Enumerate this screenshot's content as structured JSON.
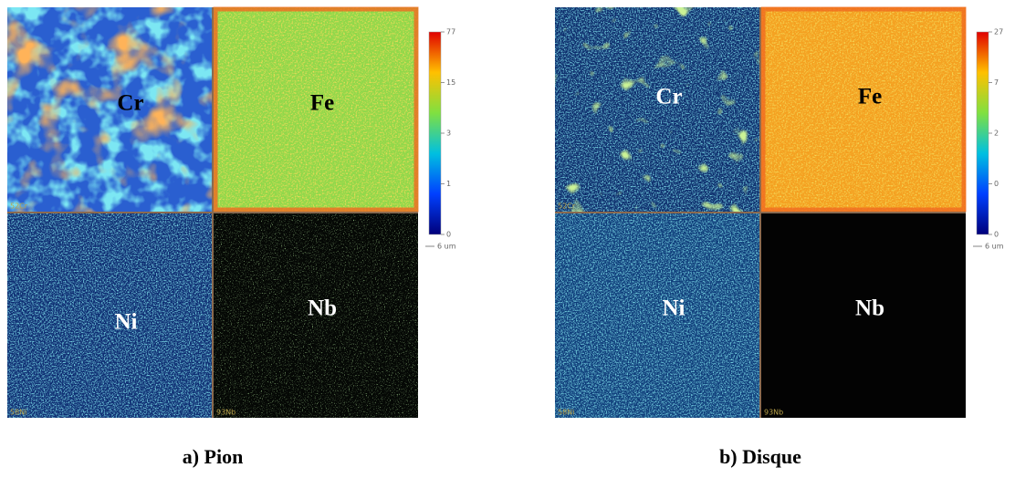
{
  "panels": [
    {
      "caption": "a) Pion",
      "maps": [
        {
          "element": "Cr",
          "isotope": "52Cr"
        },
        {
          "element": "Fe"
        },
        {
          "element": "Ni",
          "isotope": "58Ni"
        },
        {
          "element": "Nb",
          "isotope": "93Nb"
        }
      ],
      "colorbar_ticks": [
        "77",
        "15",
        "3",
        "1",
        "0"
      ],
      "scale_bar": "6 um"
    },
    {
      "caption": "b) Disque",
      "maps": [
        {
          "element": "Cr",
          "isotope": "52Cr"
        },
        {
          "element": "Fe"
        },
        {
          "element": "Ni",
          "isotope": "58Ni"
        },
        {
          "element": "Nb",
          "isotope": "93Nb"
        }
      ],
      "colorbar_ticks": [
        "27",
        "7",
        "2",
        "0",
        "0"
      ],
      "scale_bar": "6 um"
    }
  ]
}
